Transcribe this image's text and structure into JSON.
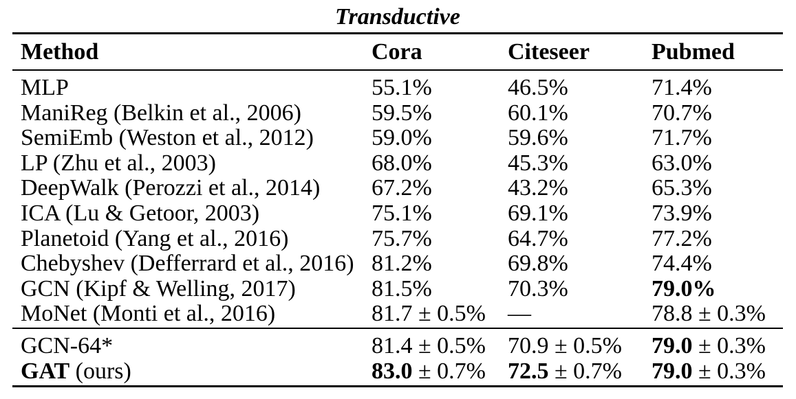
{
  "table": {
    "title": "Transductive",
    "columns": [
      "Method",
      "Cora",
      "Citeseer",
      "Pubmed"
    ],
    "sections": [
      {
        "name": "baseline-methods",
        "rows": [
          {
            "cells": [
              [
                {
                  "t": "MLP",
                  "b": false
                }
              ],
              [
                {
                  "t": "55.1%",
                  "b": false
                }
              ],
              [
                {
                  "t": "46.5%",
                  "b": false
                }
              ],
              [
                {
                  "t": "71.4%",
                  "b": false
                }
              ]
            ]
          },
          {
            "cells": [
              [
                {
                  "t": "ManiReg (Belkin et al., 2006)",
                  "b": false
                }
              ],
              [
                {
                  "t": "59.5%",
                  "b": false
                }
              ],
              [
                {
                  "t": "60.1%",
                  "b": false
                }
              ],
              [
                {
                  "t": "70.7%",
                  "b": false
                }
              ]
            ]
          },
          {
            "cells": [
              [
                {
                  "t": "SemiEmb (Weston et al., 2012)",
                  "b": false
                }
              ],
              [
                {
                  "t": "59.0%",
                  "b": false
                }
              ],
              [
                {
                  "t": "59.6%",
                  "b": false
                }
              ],
              [
                {
                  "t": "71.7%",
                  "b": false
                }
              ]
            ]
          },
          {
            "cells": [
              [
                {
                  "t": "LP (Zhu et al., 2003)",
                  "b": false
                }
              ],
              [
                {
                  "t": "68.0%",
                  "b": false
                }
              ],
              [
                {
                  "t": "45.3%",
                  "b": false
                }
              ],
              [
                {
                  "t": "63.0%",
                  "b": false
                }
              ]
            ]
          },
          {
            "cells": [
              [
                {
                  "t": "DeepWalk (Perozzi et al., 2014)",
                  "b": false
                }
              ],
              [
                {
                  "t": "67.2%",
                  "b": false
                }
              ],
              [
                {
                  "t": "43.2%",
                  "b": false
                }
              ],
              [
                {
                  "t": "65.3%",
                  "b": false
                }
              ]
            ]
          },
          {
            "cells": [
              [
                {
                  "t": "ICA (Lu & Getoor, 2003)",
                  "b": false
                }
              ],
              [
                {
                  "t": "75.1%",
                  "b": false
                }
              ],
              [
                {
                  "t": "69.1%",
                  "b": false
                }
              ],
              [
                {
                  "t": "73.9%",
                  "b": false
                }
              ]
            ]
          },
          {
            "cells": [
              [
                {
                  "t": "Planetoid (Yang et al., 2016)",
                  "b": false
                }
              ],
              [
                {
                  "t": "75.7%",
                  "b": false
                }
              ],
              [
                {
                  "t": "64.7%",
                  "b": false
                }
              ],
              [
                {
                  "t": "77.2%",
                  "b": false
                }
              ]
            ]
          },
          {
            "cells": [
              [
                {
                  "t": "Chebyshev (Defferrard et al., 2016)",
                  "b": false
                }
              ],
              [
                {
                  "t": "81.2%",
                  "b": false
                }
              ],
              [
                {
                  "t": "69.8%",
                  "b": false
                }
              ],
              [
                {
                  "t": "74.4%",
                  "b": false
                }
              ]
            ]
          },
          {
            "cells": [
              [
                {
                  "t": "GCN (Kipf & Welling, 2017)",
                  "b": false
                }
              ],
              [
                {
                  "t": "81.5%",
                  "b": false
                }
              ],
              [
                {
                  "t": "70.3%",
                  "b": false
                }
              ],
              [
                {
                  "t": "79.0%",
                  "b": true
                }
              ]
            ]
          },
          {
            "cells": [
              [
                {
                  "t": "MoNet (Monti et al., 2016)",
                  "b": false
                }
              ],
              [
                {
                  "t": "81.7 ± 0.5%",
                  "b": false
                }
              ],
              [
                {
                  "t": "—",
                  "b": false
                }
              ],
              [
                {
                  "t": "78.8 ± 0.3%",
                  "b": false
                }
              ]
            ]
          }
        ]
      },
      {
        "name": "our-methods",
        "rows": [
          {
            "cells": [
              [
                {
                  "t": "GCN-64*",
                  "b": false
                }
              ],
              [
                {
                  "t": "81.4 ± 0.5%",
                  "b": false
                }
              ],
              [
                {
                  "t": "70.9 ± 0.5%",
                  "b": false
                }
              ],
              [
                {
                  "t": "79.0",
                  "b": true
                },
                {
                  "t": " ± 0.3%",
                  "b": false
                }
              ]
            ]
          },
          {
            "cells": [
              [
                {
                  "t": "GAT",
                  "b": true
                },
                {
                  "t": " (ours)",
                  "b": false
                }
              ],
              [
                {
                  "t": "83.0",
                  "b": true
                },
                {
                  "t": " ± 0.7%",
                  "b": false
                }
              ],
              [
                {
                  "t": "72.5",
                  "b": true
                },
                {
                  "t": " ± 0.7%",
                  "b": false
                }
              ],
              [
                {
                  "t": "79.0",
                  "b": true
                },
                {
                  "t": " ± 0.3%",
                  "b": false
                }
              ]
            ]
          }
        ]
      }
    ]
  },
  "colors": {
    "text": "#000000",
    "background": "#ffffff",
    "rule": "#000000"
  }
}
